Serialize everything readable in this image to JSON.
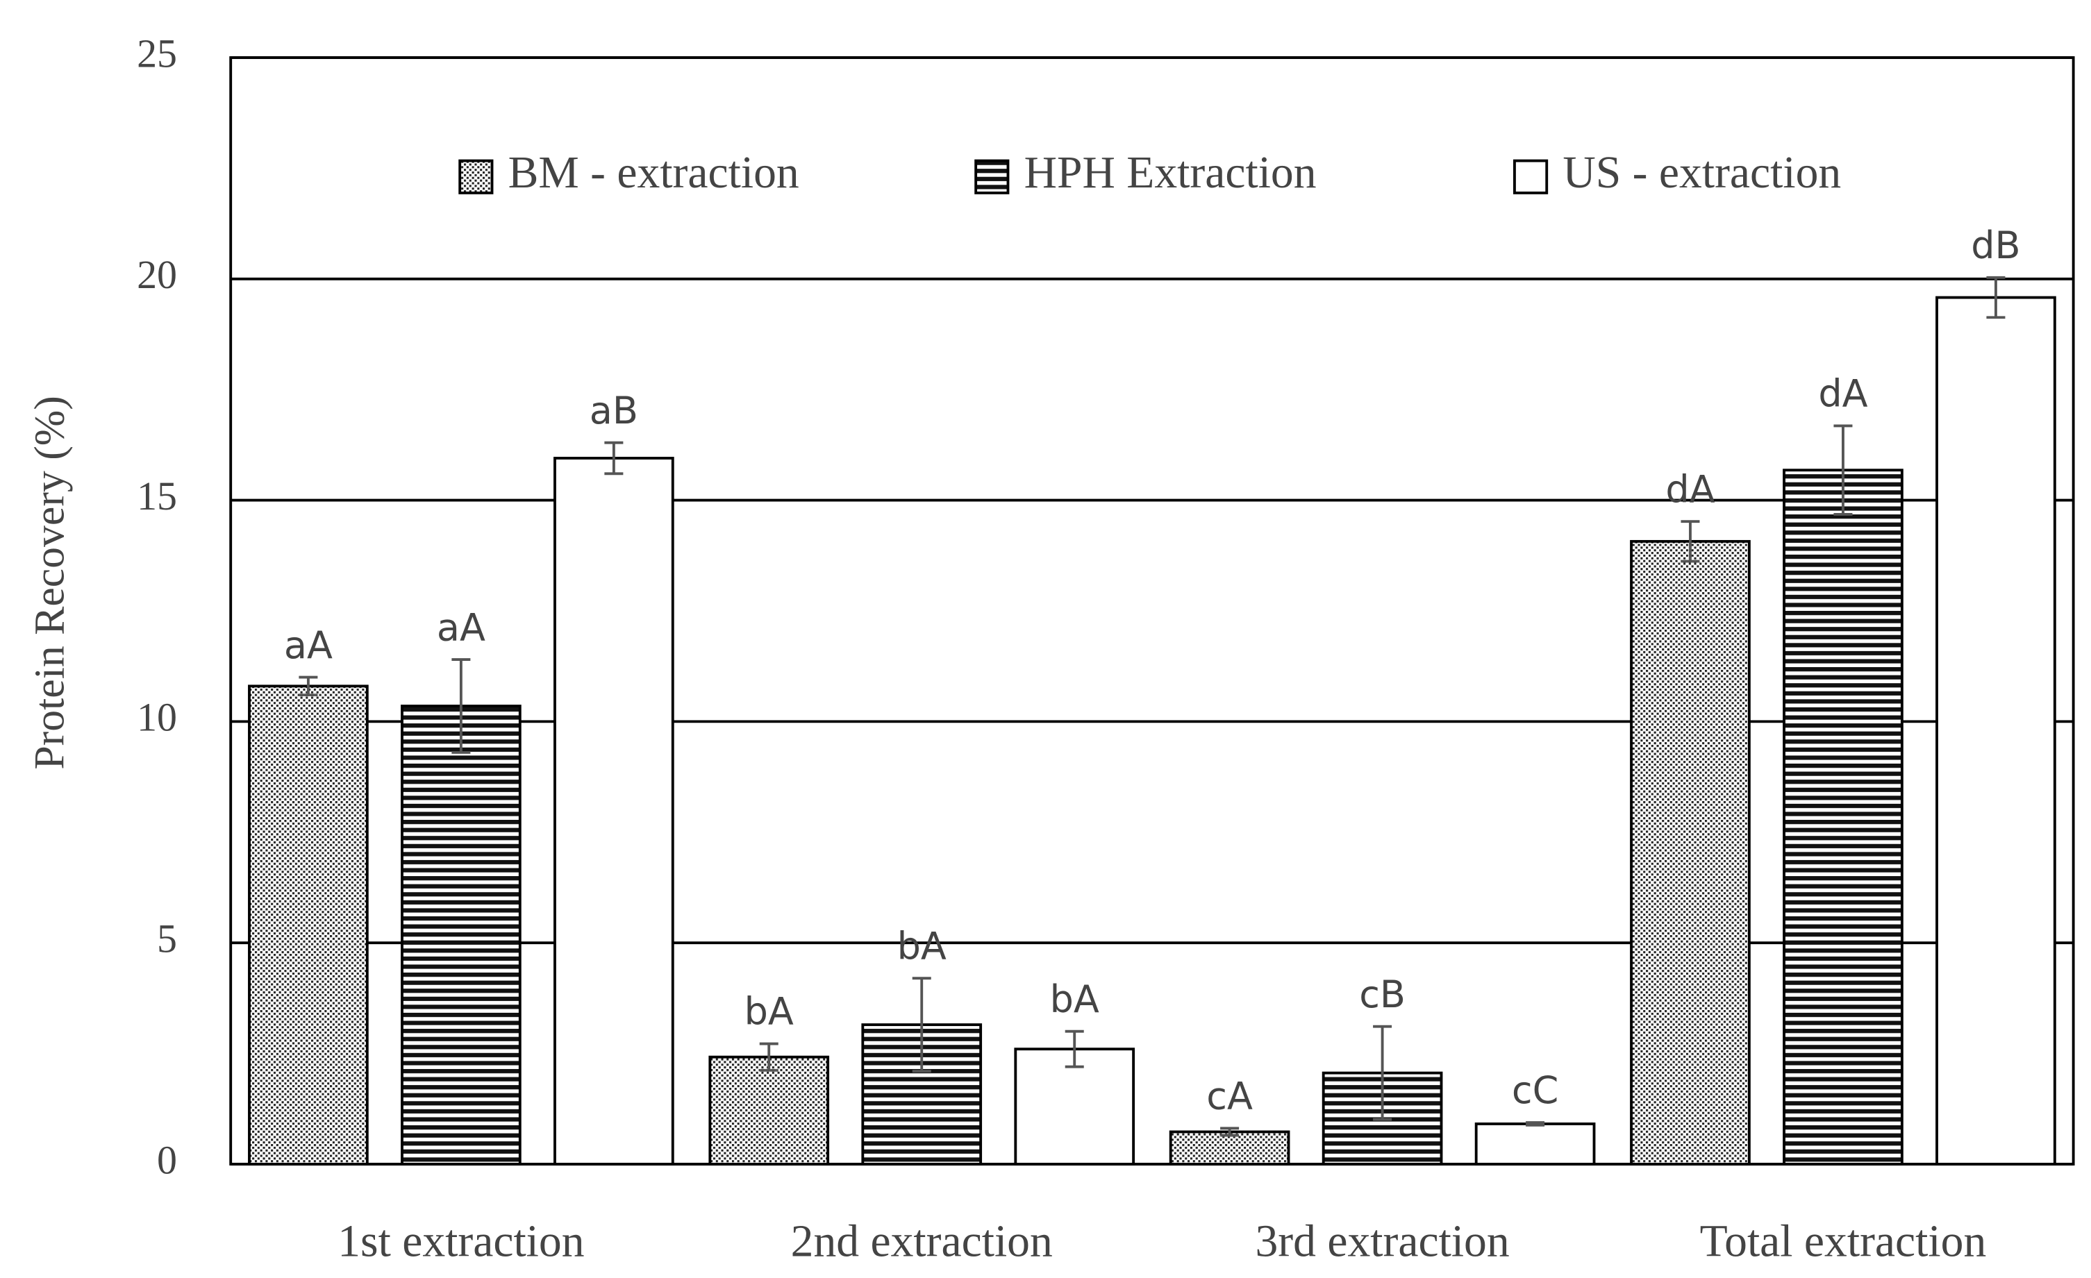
{
  "chart_data": {
    "type": "bar",
    "y_label": "Protein Recovery (%)",
    "categories": [
      "1st extraction",
      "2nd extraction",
      "3rd extraction",
      "Total extraction"
    ],
    "series": [
      {
        "name": "BM - extraction",
        "color": "#ffffff",
        "pattern": "dots",
        "values": [
          10.8,
          2.42,
          0.73,
          14.07
        ],
        "errors": [
          0.2,
          0.3,
          0.08,
          0.45
        ],
        "labels": [
          "aA",
          "bA",
          "cA",
          "dA"
        ]
      },
      {
        "name": "HPH Extraction",
        "color": "#ffffff",
        "pattern": "stripes",
        "values": [
          10.35,
          3.15,
          2.06,
          15.68
        ],
        "errors": [
          1.05,
          1.05,
          1.05,
          1.0
        ],
        "labels": [
          "aA",
          "bA",
          "cB",
          "dA"
        ]
      },
      {
        "name": "US - extraction",
        "color": "#ffffff",
        "pattern": "none",
        "values": [
          15.95,
          2.6,
          0.91,
          19.58
        ],
        "errors": [
          0.35,
          0.4,
          0.03,
          0.45
        ],
        "labels": [
          "aB",
          "bA",
          "cC",
          "dB"
        ]
      }
    ],
    "ylim": [
      0,
      25
    ],
    "yticks": [
      0,
      5,
      10,
      15,
      20,
      25
    ],
    "grid": true
  }
}
